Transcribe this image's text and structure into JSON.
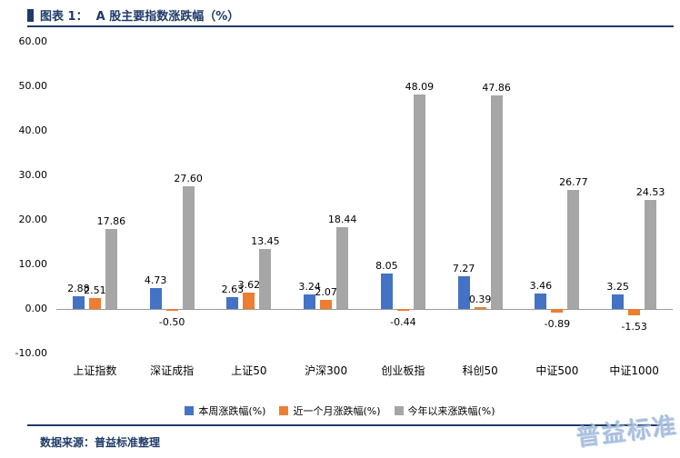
{
  "header": {
    "title": "图表 1：  A 股主要指数涨跌幅（%）"
  },
  "footer": {
    "source": "数据来源：普益标准整理"
  },
  "watermark": {
    "text": "普益标准"
  },
  "colors": {
    "navy": "#1f3a68",
    "week_blue": "#4472c4",
    "month_orange": "#ed7d31",
    "ytd_gray": "#a6a6a6"
  },
  "chart_data": {
    "type": "bar",
    "title": "A 股主要指数涨跌幅（%）",
    "categories": [
      "上证指数",
      "深证成指",
      "上证50",
      "沪深300",
      "创业板指",
      "科创50",
      "中证500",
      "中证1000"
    ],
    "series": [
      {
        "name": "本周涨跌幅(%)",
        "color": "#4472c4",
        "values": [
          2.88,
          4.73,
          2.63,
          3.24,
          8.05,
          7.27,
          3.46,
          3.25
        ]
      },
      {
        "name": "近一个月涨跌幅(%)",
        "color": "#ed7d31",
        "values": [
          2.51,
          -0.5,
          3.62,
          2.07,
          -0.44,
          0.39,
          -0.89,
          -1.53
        ]
      },
      {
        "name": "今年以来涨跌幅(%)",
        "color": "#a6a6a6",
        "values": [
          17.86,
          27.6,
          13.45,
          18.44,
          48.09,
          47.86,
          26.77,
          24.53
        ]
      }
    ],
    "ylim": [
      -10,
      60
    ],
    "yticks": [
      60,
      50,
      40,
      30,
      20,
      10,
      0,
      -10
    ],
    "ytick_labels": [
      "60.00",
      "50.00",
      "40.00",
      "30.00",
      "20.00",
      "10.00",
      "0.00",
      "-10.00"
    ],
    "data_labels": true,
    "grid": false,
    "legend_position": "bottom"
  }
}
